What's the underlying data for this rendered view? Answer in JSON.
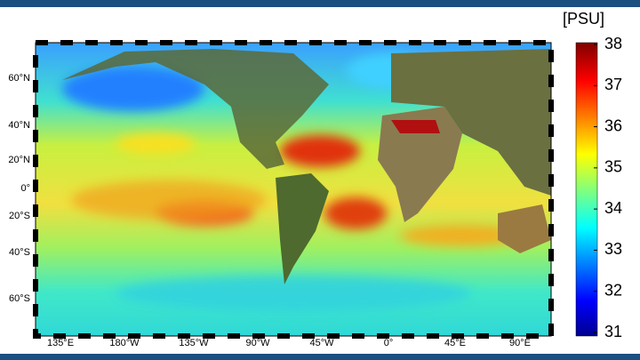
{
  "colorbar": {
    "label": "[PSU]",
    "clim": [
      31,
      38
    ],
    "ticks": [
      38,
      37,
      36,
      35,
      34,
      33,
      32,
      31
    ]
  },
  "axes": {
    "lat_labels": [
      "60°N",
      "40°N",
      "20°N",
      "0°",
      "20°S",
      "40°S",
      "60°S"
    ],
    "lon_labels": [
      "135°E",
      "180°W",
      "135°W",
      "90°W",
      "45°W",
      "0°",
      "45°E",
      "90°E"
    ]
  }
}
